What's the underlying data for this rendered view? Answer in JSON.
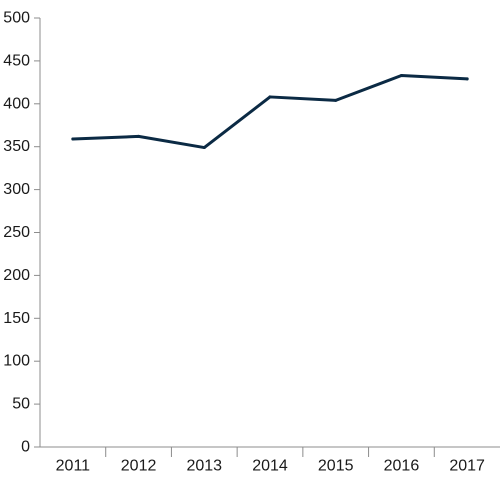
{
  "chart_data": {
    "type": "line",
    "title": "",
    "xlabel": "",
    "ylabel": "",
    "categories": [
      "2011",
      "2012",
      "2013",
      "2014",
      "2015",
      "2016",
      "2017"
    ],
    "series": [
      {
        "values": [
          359,
          362,
          349,
          408,
          404,
          433,
          429
        ]
      }
    ],
    "ylim": [
      0,
      500
    ],
    "yticks": [
      "0",
      "50",
      "100",
      "150",
      "200",
      "250",
      "300",
      "350",
      "400",
      "450",
      "500"
    ],
    "grid": false,
    "legend": "none",
    "line_color": "#0b2a44",
    "axis_color": "#8c8c8c"
  }
}
